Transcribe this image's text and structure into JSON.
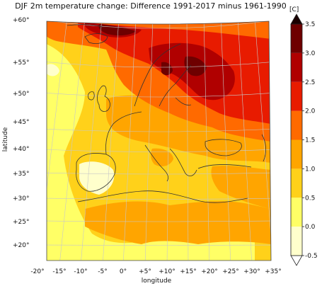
{
  "title": "DJF 2m temperature change: Difference 1991-2017 minus 1961-1990",
  "xlabel": "longitude",
  "ylabel": "latitude",
  "lat_labels": [
    "+60°",
    "+55°",
    "+50°",
    "+45°",
    "+40°",
    "+35°",
    "+30°",
    "+25°",
    "+20°"
  ],
  "lon_labels": [
    "-20°",
    "-15°",
    "-10°",
    "-5°",
    "0°",
    "+5°",
    "+10°",
    "+15°",
    "+20°",
    "+25°",
    "+30°",
    "+35°"
  ],
  "colorbar": {
    "unit": "[C]",
    "levels": [
      -0.5,
      0.0,
      0.5,
      1.0,
      1.5,
      2.0,
      2.5,
      3.0,
      3.5
    ],
    "tick_labels": [
      "-0.5",
      "0.0",
      "0.5",
      "1.0",
      "1.5",
      "2.0",
      "2.5",
      "3.0",
      "3.5"
    ],
    "colors": [
      "#ffffcc",
      "#ffff66",
      "#ffd11a",
      "#ffa500",
      "#ff6a00",
      "#e81b00",
      "#b00000",
      "#6e0000"
    ],
    "extend_color_low": "#ffffff",
    "extend_color_high": "#1a0000"
  },
  "colors": {
    "base_fill": "#ffe633",
    "coastline": "#333333",
    "gridline": "#c8c8c8"
  }
}
